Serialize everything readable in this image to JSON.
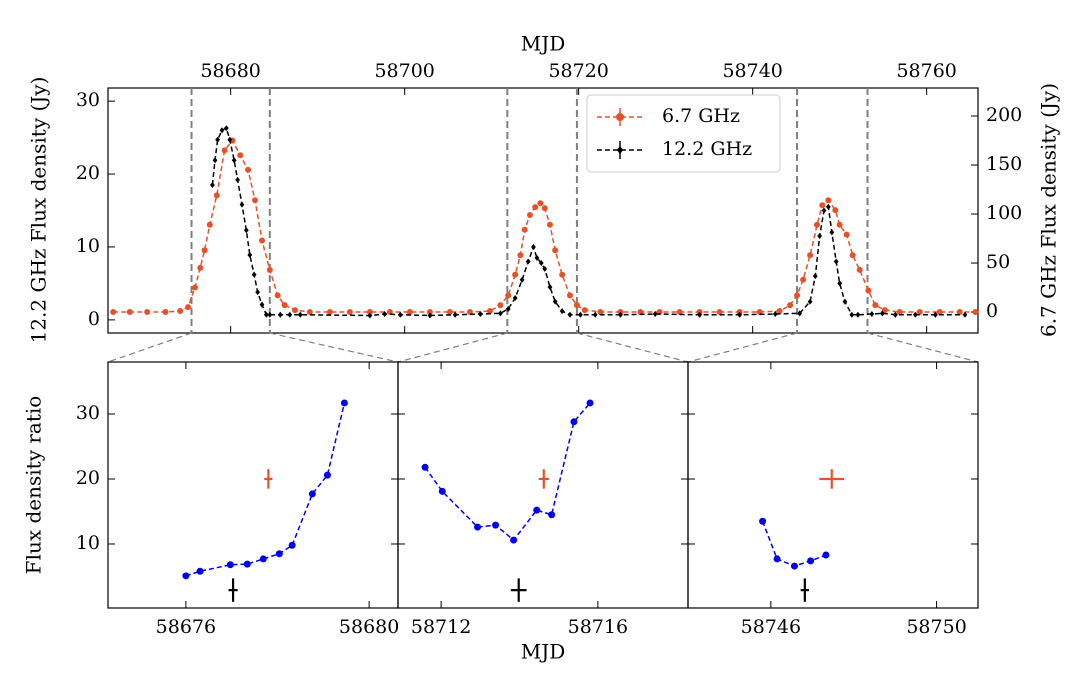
{
  "chart_data": [
    {
      "type": "line",
      "xlabel": "MJD",
      "ylabel": "12.2 GHz Flux density (Jy)",
      "y2label": "6.7 GHz Flux density (Jy)",
      "xlim": [
        58665.9,
        58765.9
      ],
      "xticks": [
        58680,
        58700,
        58720,
        58740,
        58760
      ],
      "ylim": [
        -1.8,
        31.8
      ],
      "yticks": [
        0,
        10,
        20,
        30
      ],
      "y2lim": [
        -21.4,
        228.6
      ],
      "y2ticks": [
        0,
        50,
        100,
        150,
        200
      ],
      "windows": [
        [
          58675.5,
          58684.5
        ],
        [
          58711.8,
          58719.8
        ],
        [
          58745.1,
          58753.2
        ]
      ],
      "legend": "upper center",
      "series": [
        {
          "name": "6.7 GHz",
          "color": "#e8502a",
          "axis": "y2",
          "marker": "circle",
          "x": [
            58666.5,
            58668.4,
            58670.4,
            58672.5,
            58674.2,
            58675.1,
            58675.9,
            58676.5,
            58677.0,
            58677.6,
            58678.4,
            58679.3,
            58680.2,
            58681.1,
            58682.0,
            58682.8,
            58683.6,
            58684.5,
            58685.4,
            58686.2,
            58687.4,
            58689.1,
            58691.4,
            58693.7,
            58696.0,
            58698.3,
            58700.6,
            58702.9,
            58705.2,
            58707.5,
            58709.8,
            58711.0,
            58711.9,
            58712.7,
            58713.3,
            58713.8,
            58714.4,
            58715.0,
            58715.6,
            58716.1,
            58716.7,
            58717.3,
            58718.1,
            58719.0,
            58719.8,
            58720.7,
            58722.5,
            58724.8,
            58727.1,
            58729.3,
            58731.6,
            58733.9,
            58736.2,
            58738.5,
            58740.8,
            58743.1,
            58744.3,
            58745.1,
            58745.8,
            58746.6,
            58747.4,
            58748.0,
            58748.7,
            58749.5,
            58750.0,
            58750.8,
            58751.5,
            58752.3,
            58753.3,
            58754.1,
            58755.2,
            58756.9,
            58759.2,
            58761.5,
            58763.8,
            58765.6
          ],
          "values": [
            0,
            0,
            0,
            0,
            1,
            5,
            25,
            45,
            63,
            89,
            119,
            165,
            175,
            160,
            145,
            114,
            73,
            43,
            17,
            7,
            2,
            0,
            0,
            0,
            0,
            0,
            0,
            0,
            0,
            0,
            1,
            7,
            17,
            38,
            58,
            84,
            99,
            107,
            111,
            106,
            89,
            63,
            38,
            17,
            7,
            2,
            0,
            0,
            0,
            0,
            0,
            0,
            0,
            0,
            0,
            1,
            7,
            17,
            33,
            58,
            89,
            109,
            114,
            104,
            89,
            79,
            58,
            43,
            22,
            7,
            2,
            0,
            0,
            0,
            0,
            0
          ]
        },
        {
          "name": "12.2 GHz",
          "color": "#000000",
          "marker": "diamond",
          "x": [
            58677.9,
            58678.2,
            58678.5,
            58679.0,
            58679.5,
            58679.9,
            58680.4,
            58680.8,
            58681.3,
            58681.8,
            58682.2,
            58682.7,
            58683.1,
            58683.6,
            58684.1,
            58684.5,
            58685.7,
            58686.8,
            58688.0,
            58696.0,
            58697.7,
            58699.5,
            58702.9,
            58705.8,
            58708.7,
            58711.0,
            58711.9,
            58712.7,
            58713.5,
            58714.2,
            58714.8,
            58715.2,
            58715.7,
            58716.1,
            58716.7,
            58717.3,
            58718.1,
            58719.0,
            58720.2,
            58721.9,
            58724.8,
            58728.8,
            58733.9,
            58738.5,
            58742.6,
            58745.4,
            58746.6,
            58747.2,
            58747.7,
            58748.2,
            58748.7,
            58749.1,
            58749.6,
            58750.0,
            58750.6,
            58751.4,
            58752.1,
            58753.7,
            58754.9,
            58756.4,
            58758.7,
            58761.0,
            58764.4
          ],
          "values": [
            18.5,
            21.9,
            24.7,
            26.0,
            26.3,
            24.7,
            21.9,
            19.2,
            15.8,
            12.3,
            8.9,
            6.2,
            3.8,
            2.1,
            0.7,
            0.7,
            0.7,
            0.7,
            0.7,
            0.6,
            0.8,
            0.7,
            0.6,
            0.7,
            0.8,
            0.9,
            1.5,
            3.0,
            5.5,
            8.0,
            10.0,
            8.5,
            7.8,
            7.0,
            4.5,
            2.5,
            1.2,
            0.7,
            0.7,
            0.7,
            0.7,
            0.8,
            0.7,
            0.7,
            0.8,
            0.9,
            2.5,
            6.0,
            11.5,
            15.0,
            15.5,
            12.0,
            8.0,
            5.0,
            2.5,
            0.7,
            0.7,
            0.8,
            0.9,
            0.7,
            0.7,
            0.7,
            0.7
          ]
        }
      ]
    },
    {
      "type": "line",
      "ylabel": "Flux density ratio",
      "xlim": [
        58674.3,
        58680.63
      ],
      "xticks": [
        58676,
        58680
      ],
      "ylim": [
        0.15,
        38.0
      ],
      "yticks": [
        10,
        20,
        30
      ],
      "series": [
        {
          "color": "#0000ee",
          "x": [
            58676.0,
            58676.31,
            58676.97,
            58677.34,
            58677.69,
            58678.04,
            58678.32,
            58678.76,
            58679.09,
            58679.46
          ],
          "values": [
            5.1,
            5.8,
            6.8,
            6.9,
            7.7,
            8.5,
            9.8,
            17.7,
            20.6,
            31.7
          ]
        }
      ],
      "points": [
        {
          "color": "#e8502a",
          "x": 58677.8,
          "y": 20.0,
          "xerr": 0.09,
          "yerr": 1.5
        },
        {
          "color": "#000000",
          "x": 58677.03,
          "y": 2.9,
          "xerr": 0.1,
          "yerr": 1.8
        }
      ]
    },
    {
      "type": "line",
      "xlabel": "MJD",
      "xlim": [
        58710.9,
        58718.3
      ],
      "xticks": [
        58712,
        58716
      ],
      "series": [
        {
          "color": "#0000ee",
          "x": [
            58711.59,
            58712.03,
            58712.93,
            58713.39,
            58713.85,
            58714.44,
            58714.82,
            58715.39,
            58715.8
          ],
          "values": [
            21.8,
            18.1,
            12.6,
            12.9,
            10.6,
            15.2,
            14.5,
            28.8,
            31.7
          ]
        }
      ],
      "points": [
        {
          "color": "#e8502a",
          "x": 58714.62,
          "y": 20.0,
          "xerr": 0.13,
          "yerr": 1.5
        },
        {
          "color": "#000000",
          "x": 58713.98,
          "y": 2.9,
          "xerr": 0.2,
          "yerr": 1.8
        }
      ]
    },
    {
      "type": "line",
      "xlim": [
        58744.0,
        58751.0
      ],
      "xticks": [
        58746,
        58750
      ],
      "series": [
        {
          "color": "#0000ee",
          "x": [
            58745.8,
            58746.15,
            58746.57,
            58746.96,
            58747.33
          ],
          "values": [
            13.5,
            7.7,
            6.6,
            7.4,
            8.3
          ]
        }
      ],
      "points": [
        {
          "color": "#e8502a",
          "x": 58747.47,
          "y": 20.0,
          "xerr": 0.3,
          "yerr": 1.5
        },
        {
          "color": "#000000",
          "x": 58746.82,
          "y": 2.9,
          "xerr": 0.1,
          "yerr": 1.8
        }
      ]
    }
  ]
}
